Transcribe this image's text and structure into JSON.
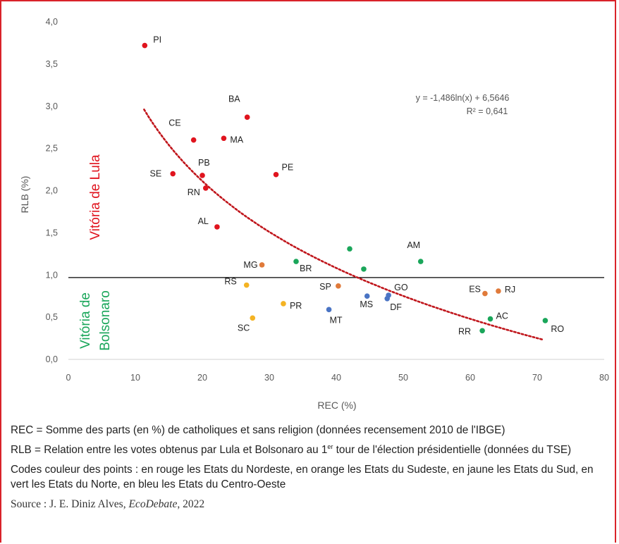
{
  "chart_data": {
    "type": "scatter",
    "xlabel": "REC (%)",
    "ylabel": "RLB (%)",
    "xlim": [
      0,
      80
    ],
    "ylim": [
      0,
      4
    ],
    "x_ticks": [
      "0",
      "10",
      "20",
      "30",
      "40",
      "50",
      "60",
      "70",
      "80"
    ],
    "y_ticks": [
      "0,0",
      "0,5",
      "1,0",
      "1,5",
      "2,0",
      "2,5",
      "3,0",
      "3,5",
      "4,0"
    ],
    "grid": false,
    "reference_line_y": 0.97,
    "trendline": {
      "type": "logarithmic",
      "a": -1.486,
      "b": 6.5646,
      "x_range": [
        11.3,
        71
      ],
      "equation_label": "y = -1,486ln(x) + 6,5646",
      "r2_label": "R² = 0,641",
      "color": "#c0161c"
    },
    "region_labels": {
      "lula": "Vitória de Lula",
      "bolsonaro_line1": "Vitória de",
      "bolsonaro_line2": "Bolsonaro"
    },
    "colors": {
      "nordeste": "#e0141e",
      "sudeste": "#e07a3a",
      "sul": "#f4b323",
      "norte": "#1aa65a",
      "centro_oeste": "#4a74c4",
      "lula_label": "#e0141e",
      "bolsonaro_label": "#1aa65a"
    },
    "points": [
      {
        "label": "PI",
        "x": 11.4,
        "y": 3.72,
        "region": "nordeste"
      },
      {
        "label": "BA",
        "x": 26.7,
        "y": 2.87,
        "region": "nordeste"
      },
      {
        "label": "CE",
        "x": 18.7,
        "y": 2.6,
        "region": "nordeste"
      },
      {
        "label": "MA",
        "x": 23.2,
        "y": 2.62,
        "region": "nordeste"
      },
      {
        "label": "SE",
        "x": 15.6,
        "y": 2.2,
        "region": "nordeste"
      },
      {
        "label": "PB",
        "x": 20,
        "y": 2.18,
        "region": "nordeste"
      },
      {
        "label": "PE",
        "x": 31,
        "y": 2.19,
        "region": "nordeste"
      },
      {
        "label": "RN",
        "x": 20.5,
        "y": 2.03,
        "region": "nordeste"
      },
      {
        "label": "AL",
        "x": 22.2,
        "y": 1.57,
        "region": "nordeste"
      },
      {
        "label": "MG",
        "x": 28.9,
        "y": 1.12,
        "region": "sudeste"
      },
      {
        "label": "SP",
        "x": 40.3,
        "y": 0.87,
        "region": "sudeste"
      },
      {
        "label": "ES",
        "x": 62.2,
        "y": 0.78,
        "region": "sudeste"
      },
      {
        "label": "RJ",
        "x": 64.2,
        "y": 0.81,
        "region": "sudeste"
      },
      {
        "label": "RS",
        "x": 26.6,
        "y": 0.88,
        "region": "sul"
      },
      {
        "label": "PR",
        "x": 32.1,
        "y": 0.66,
        "region": "sul"
      },
      {
        "label": "SC",
        "x": 27.5,
        "y": 0.49,
        "region": "sul"
      },
      {
        "label": "BR",
        "x": 34,
        "y": 1.16,
        "region": "norte"
      },
      {
        "label": "",
        "x": 42,
        "y": 1.31,
        "region": "norte"
      },
      {
        "label": "",
        "x": 44.1,
        "y": 1.07,
        "region": "norte"
      },
      {
        "label": "AM",
        "x": 52.6,
        "y": 1.16,
        "region": "norte"
      },
      {
        "label": "AC",
        "x": 63,
        "y": 0.48,
        "region": "norte"
      },
      {
        "label": "RR",
        "x": 61.8,
        "y": 0.34,
        "region": "norte"
      },
      {
        "label": "RO",
        "x": 71.2,
        "y": 0.46,
        "region": "norte"
      },
      {
        "label": "MS",
        "x": 44.6,
        "y": 0.75,
        "region": "centro_oeste"
      },
      {
        "label": "GO",
        "x": 47.8,
        "y": 0.76,
        "region": "centro_oeste"
      },
      {
        "label": "DF",
        "x": 47.6,
        "y": 0.72,
        "region": "centro_oeste"
      },
      {
        "label": "MT",
        "x": 38.9,
        "y": 0.59,
        "region": "centro_oeste"
      }
    ]
  },
  "notes": {
    "rec": "REC = Somme des parts (en %) de catholiques et sans religion (données recensement 2010 de l'IBGE)",
    "rlb_before": "RLB = Relation entre les votes obtenus par Lula et Bolsonaro au 1",
    "rlb_sup": "er",
    "rlb_after": " tour de l'élection présidentielle (données du TSE)",
    "colors": "Codes couleur des points : en rouge les Etats du Nordeste, en orange les Etats du Sudeste, en jaune les Etats du Sud, en vert les Etats du Norte, en bleu les Etats du Centro-Oeste",
    "source_prefix": "Source : J. E. Diniz Alves, ",
    "source_pub": "EcoDebate",
    "source_suffix": ", 2022"
  }
}
